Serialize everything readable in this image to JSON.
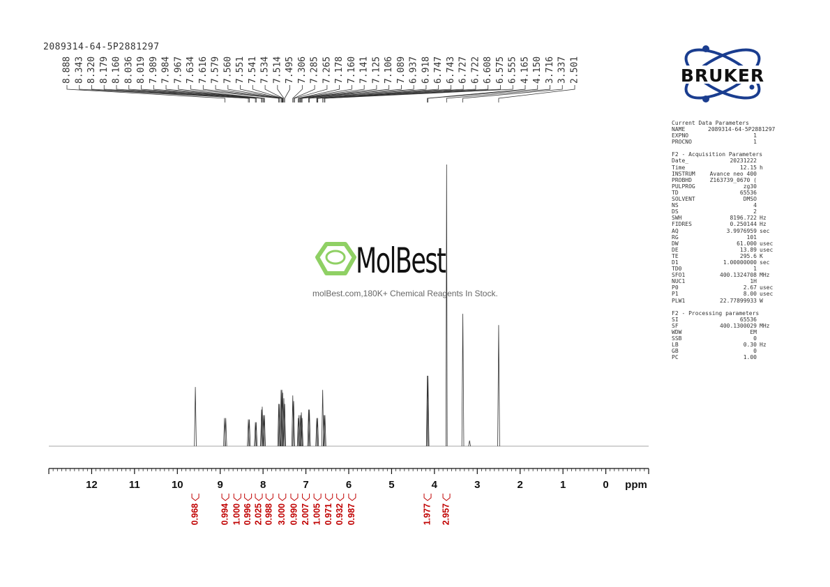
{
  "sample_id": "2089314-64-5P2881297",
  "logo": {
    "brand": "BRUKER"
  },
  "watermark": {
    "name": "MolBest",
    "tagline": "molBest.com,180K+ Chemical Reagents In Stock."
  },
  "peak_labels": [
    "8.888",
    "8.343",
    "8.320",
    "8.179",
    "8.160",
    "8.036",
    "8.019",
    "7.989",
    "7.984",
    "7.967",
    "7.634",
    "7.616",
    "7.579",
    "7.560",
    "7.551",
    "7.541",
    "7.534",
    "7.514",
    "7.495",
    "7.306",
    "7.285",
    "7.265",
    "7.178",
    "7.160",
    "7.141",
    "7.125",
    "7.106",
    "7.089",
    "6.937",
    "6.918",
    "6.747",
    "6.743",
    "6.727",
    "6.722",
    "6.608",
    "6.575",
    "6.555",
    "4.165",
    "4.150",
    "3.716",
    "3.337",
    "2.501"
  ],
  "params": {
    "current_title": "Current Data Parameters",
    "current": [
      [
        "NAME",
        "2089314-64-5P2881297",
        ""
      ],
      [
        "EXPNO",
        "1",
        ""
      ],
      [
        "PROCNO",
        "1",
        ""
      ]
    ],
    "acq_title": "F2 - Acquisition Parameters",
    "acq": [
      [
        "Date_",
        "20231222",
        ""
      ],
      [
        "Time",
        "12.15",
        "h"
      ],
      [
        "INSTRUM",
        "Avance neo 400",
        ""
      ],
      [
        "PROBHD",
        "Z163739_0670 (",
        ""
      ],
      [
        "PULPROG",
        "zg30",
        ""
      ],
      [
        "TD",
        "65536",
        ""
      ],
      [
        "SOLVENT",
        "DMSO",
        ""
      ],
      [
        "NS",
        "4",
        ""
      ],
      [
        "DS",
        "2",
        ""
      ],
      [
        "SWH",
        "8196.722",
        "Hz"
      ],
      [
        "FIDRES",
        "0.250144",
        "Hz"
      ],
      [
        "AQ",
        "3.9976959",
        "sec"
      ],
      [
        "RG",
        "101",
        ""
      ],
      [
        "DW",
        "61.000",
        "usec"
      ],
      [
        "DE",
        "13.89",
        "usec"
      ],
      [
        "TE",
        "295.6",
        "K"
      ],
      [
        "D1",
        "1.00000000",
        "sec"
      ],
      [
        "TD0",
        "1",
        ""
      ],
      [
        "SFO1",
        "400.1324708",
        "MHz"
      ],
      [
        "NUC1",
        "1H",
        ""
      ],
      [
        "P0",
        "2.67",
        "usec"
      ],
      [
        "P1",
        "8.00",
        "usec"
      ],
      [
        "PLW1",
        "22.77899933",
        "W"
      ]
    ],
    "proc_title": "F2 - Processing parameters",
    "proc": [
      [
        "SI",
        "65536",
        ""
      ],
      [
        "SF",
        "400.1300029",
        "MHz"
      ],
      [
        "WDW",
        "EM",
        ""
      ],
      [
        "SSB",
        "0",
        ""
      ],
      [
        "LB",
        "0.30",
        "Hz"
      ],
      [
        "GB",
        "0",
        ""
      ],
      [
        "PC",
        "1.00",
        ""
      ]
    ]
  },
  "chart_data": {
    "type": "line",
    "xlabel": "ppm",
    "xlim": [
      13.0,
      -1.0
    ],
    "x_ticks": [
      12,
      11,
      10,
      9,
      8,
      7,
      6,
      5,
      4,
      3,
      2,
      1,
      0
    ],
    "series": [
      {
        "peaks": [
          {
            "ppm": 9.58,
            "height": 0.21
          },
          {
            "ppm": 8.9,
            "height": 0.1
          },
          {
            "ppm": 8.87,
            "height": 0.1
          },
          {
            "ppm": 8.343,
            "height": 0.095
          },
          {
            "ppm": 8.32,
            "height": 0.095
          },
          {
            "ppm": 8.179,
            "height": 0.085
          },
          {
            "ppm": 8.16,
            "height": 0.085
          },
          {
            "ppm": 8.036,
            "height": 0.13
          },
          {
            "ppm": 8.019,
            "height": 0.14
          },
          {
            "ppm": 7.989,
            "height": 0.11
          },
          {
            "ppm": 7.967,
            "height": 0.11
          },
          {
            "ppm": 7.634,
            "height": 0.15
          },
          {
            "ppm": 7.616,
            "height": 0.15
          },
          {
            "ppm": 7.579,
            "height": 0.2
          },
          {
            "ppm": 7.56,
            "height": 0.2
          },
          {
            "ppm": 7.541,
            "height": 0.19
          },
          {
            "ppm": 7.514,
            "height": 0.17
          },
          {
            "ppm": 7.495,
            "height": 0.15
          },
          {
            "ppm": 7.306,
            "height": 0.18
          },
          {
            "ppm": 7.285,
            "height": 0.16
          },
          {
            "ppm": 7.178,
            "height": 0.1
          },
          {
            "ppm": 7.16,
            "height": 0.11
          },
          {
            "ppm": 7.125,
            "height": 0.11
          },
          {
            "ppm": 7.106,
            "height": 0.12
          },
          {
            "ppm": 7.089,
            "height": 0.1
          },
          {
            "ppm": 6.937,
            "height": 0.13
          },
          {
            "ppm": 6.918,
            "height": 0.13
          },
          {
            "ppm": 6.747,
            "height": 0.1
          },
          {
            "ppm": 6.727,
            "height": 0.1
          },
          {
            "ppm": 6.608,
            "height": 0.2
          },
          {
            "ppm": 6.575,
            "height": 0.11
          },
          {
            "ppm": 6.555,
            "height": 0.11
          },
          {
            "ppm": 4.165,
            "height": 0.25
          },
          {
            "ppm": 4.15,
            "height": 0.25
          },
          {
            "ppm": 3.716,
            "height": 1.0
          },
          {
            "ppm": 3.18,
            "height": 0.02
          },
          {
            "ppm": 3.337,
            "height": 0.47
          },
          {
            "ppm": 2.501,
            "height": 0.43
          }
        ]
      }
    ],
    "integrals": [
      {
        "ppm": 9.58,
        "value": "0.968"
      },
      {
        "ppm": 8.88,
        "value": "0.994"
      },
      {
        "ppm": 8.6,
        "value": "1.000"
      },
      {
        "ppm": 8.35,
        "value": "0.996"
      },
      {
        "ppm": 8.1,
        "value": "2.025"
      },
      {
        "ppm": 7.85,
        "value": "0.988"
      },
      {
        "ppm": 7.55,
        "value": "3.000"
      },
      {
        "ppm": 7.27,
        "value": "0.990"
      },
      {
        "ppm": 7.0,
        "value": "2.007"
      },
      {
        "ppm": 6.73,
        "value": "1.005"
      },
      {
        "ppm": 6.46,
        "value": "0.971"
      },
      {
        "ppm": 6.2,
        "value": "0.932"
      },
      {
        "ppm": 5.92,
        "value": "0.987"
      },
      {
        "ppm": 4.16,
        "value": "1.977"
      },
      {
        "ppm": 3.72,
        "value": "2.957"
      }
    ]
  }
}
